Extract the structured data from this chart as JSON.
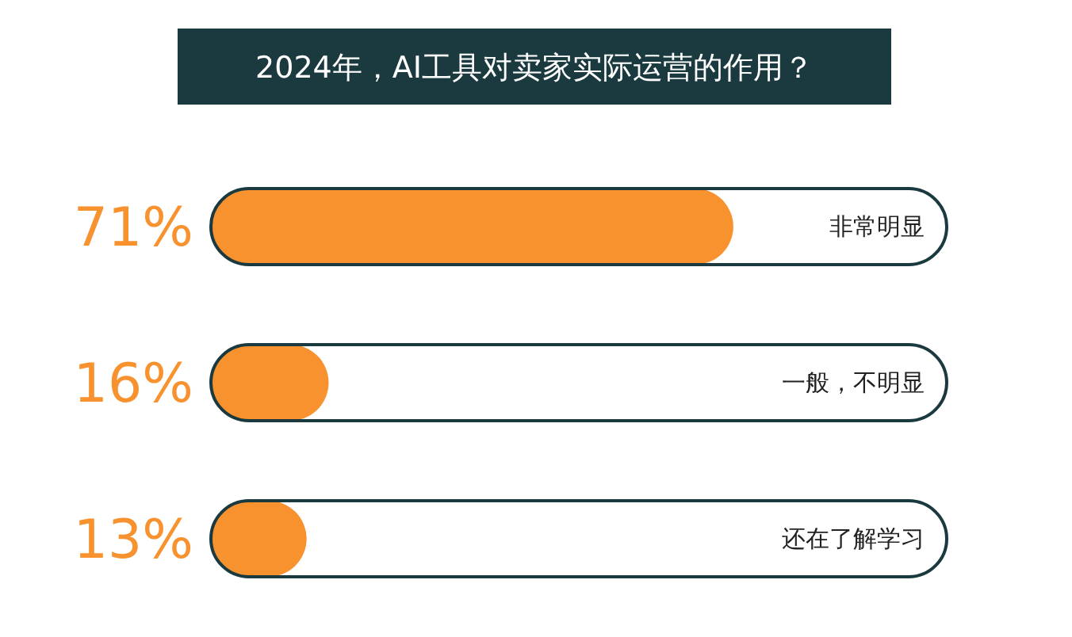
{
  "chart_data": {
    "type": "bar",
    "orientation": "horizontal",
    "title": "2024年，AI工具对卖家实际运营的作用？",
    "categories": [
      "非常明显",
      "一般，不明显",
      "还在了解学习"
    ],
    "values": [
      71,
      16,
      13
    ],
    "value_labels": [
      "71%",
      "16%",
      "13%"
    ],
    "color": "#f7922f",
    "xlim": [
      0,
      100
    ],
    "tick_labels": false
  }
}
